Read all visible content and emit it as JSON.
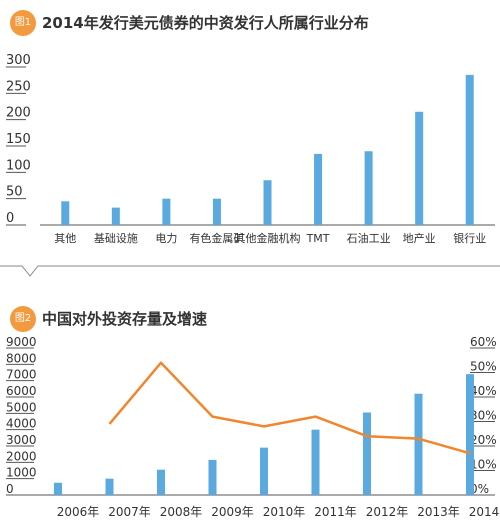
{
  "colors": {
    "badge": "#f39a3f",
    "bar": "#5aaadf",
    "line": "#f0862d",
    "axis": "#555555",
    "text": "#333333",
    "divider": "#888888"
  },
  "chart_data": [
    {
      "type": "bar",
      "badge": "图1",
      "title": "2014年发行美元债券的中资发行人所属行业分布",
      "categories": [
        "其他",
        "基础设施",
        "电力",
        "有色金属矿",
        "其他金融机构",
        "TMT",
        "石油工业",
        "地产业",
        "银行业"
      ],
      "values": [
        45,
        33,
        50,
        50,
        85,
        135,
        140,
        215,
        285
      ],
      "ylim": [
        0,
        300
      ],
      "yticks": [
        "0",
        "50",
        "100",
        "150",
        "200",
        "250",
        "300"
      ],
      "grid": false
    },
    {
      "type": "bar+line",
      "badge": "图2",
      "title": "中国对外投资存量及增速",
      "categories": [
        "2006年",
        "2007年",
        "2008年",
        "2009年",
        "2010年",
        "2011年",
        "2012年",
        "2013年",
        "2014年"
      ],
      "series": [
        {
          "type": "bar",
          "axis": "left",
          "values": [
            750,
            1000,
            1550,
            2150,
            2900,
            4000,
            5050,
            6200,
            7400
          ]
        },
        {
          "type": "line",
          "axis": "right",
          "values": [
            null,
            0.29,
            0.54,
            0.32,
            0.28,
            0.32,
            0.24,
            0.23,
            0.17
          ]
        }
      ],
      "ylim_left": [
        0,
        9000
      ],
      "ylim_right": [
        0,
        0.6
      ],
      "yticks_left": [
        "0",
        "1000",
        "2000",
        "3000",
        "4000",
        "5000",
        "6000",
        "7000",
        "8000",
        "9000"
      ],
      "yticks_right": [
        "0%",
        "10%",
        "20%",
        "30%",
        "40%",
        "50%",
        "60%"
      ],
      "grid": false
    }
  ]
}
